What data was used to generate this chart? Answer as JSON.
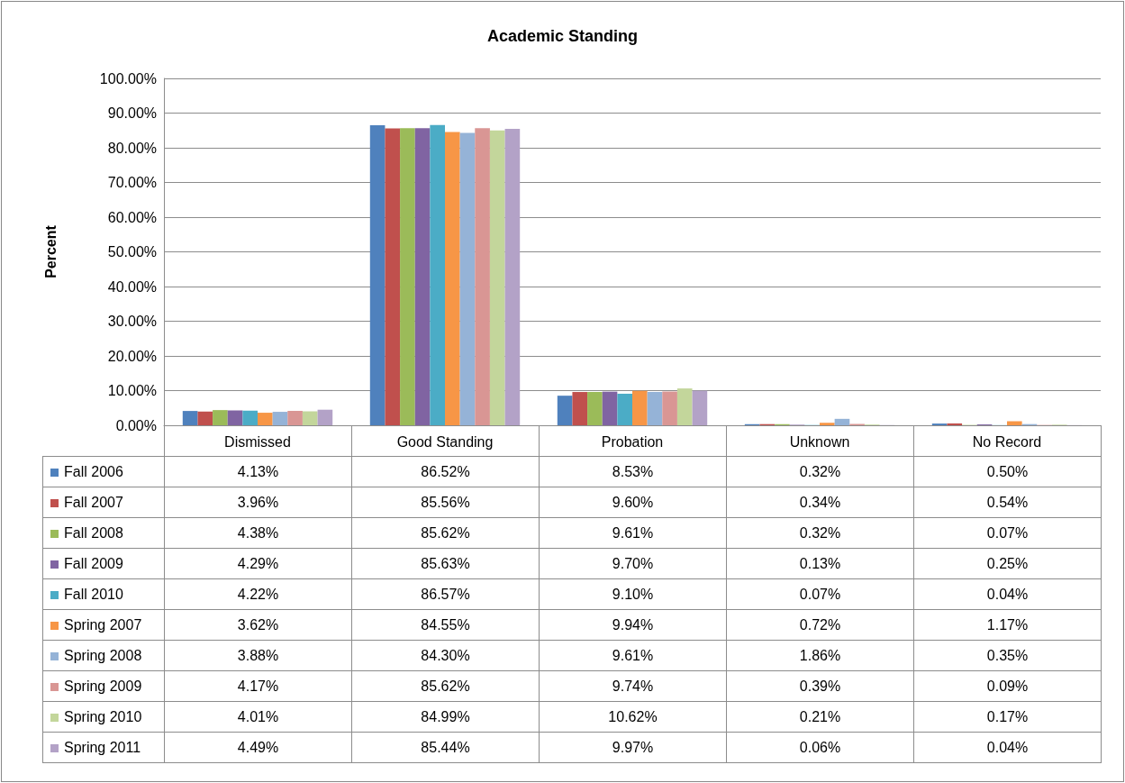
{
  "chart_data": {
    "type": "bar",
    "title": "Academic Standing",
    "ylabel": "Percent",
    "categories": [
      "Dismissed",
      "Good Standing",
      "Probation",
      "Unknown",
      "No Record"
    ],
    "series": [
      {
        "name": "Fall 2006",
        "color": "#4f81bd",
        "values": [
          4.13,
          86.52,
          8.53,
          0.32,
          0.5
        ],
        "value_labels": [
          "4.13%",
          "86.52%",
          "8.53%",
          "0.32%",
          "0.50%"
        ]
      },
      {
        "name": "Fall 2007",
        "color": "#c0504d",
        "values": [
          3.96,
          85.56,
          9.6,
          0.34,
          0.54
        ],
        "value_labels": [
          "3.96%",
          "85.56%",
          "9.60%",
          "0.34%",
          "0.54%"
        ]
      },
      {
        "name": "Fall 2008",
        "color": "#9bbb59",
        "values": [
          4.38,
          85.62,
          9.61,
          0.32,
          0.07
        ],
        "value_labels": [
          "4.38%",
          "85.62%",
          "9.61%",
          "0.32%",
          "0.07%"
        ]
      },
      {
        "name": "Fall 2009",
        "color": "#8064a2",
        "values": [
          4.29,
          85.63,
          9.7,
          0.13,
          0.25
        ],
        "value_labels": [
          "4.29%",
          "85.63%",
          "9.70%",
          "0.13%",
          "0.25%"
        ]
      },
      {
        "name": "Fall 2010",
        "color": "#4bacc6",
        "values": [
          4.22,
          86.57,
          9.1,
          0.07,
          0.04
        ],
        "value_labels": [
          "4.22%",
          "86.57%",
          "9.10%",
          "0.07%",
          "0.04%"
        ]
      },
      {
        "name": "Spring 2007",
        "color": "#f79646",
        "values": [
          3.62,
          84.55,
          9.94,
          0.72,
          1.17
        ],
        "value_labels": [
          "3.62%",
          "84.55%",
          "9.94%",
          "0.72%",
          "1.17%"
        ]
      },
      {
        "name": "Spring 2008",
        "color": "#95b3d7",
        "values": [
          3.88,
          84.3,
          9.61,
          1.86,
          0.35
        ],
        "value_labels": [
          "3.88%",
          "84.30%",
          "9.61%",
          "1.86%",
          "0.35%"
        ]
      },
      {
        "name": "Spring 2009",
        "color": "#d99694",
        "values": [
          4.17,
          85.62,
          9.74,
          0.39,
          0.09
        ],
        "value_labels": [
          "4.17%",
          "85.62%",
          "9.74%",
          "0.39%",
          "0.09%"
        ]
      },
      {
        "name": "Spring 2010",
        "color": "#c3d69b",
        "values": [
          4.01,
          84.99,
          10.62,
          0.21,
          0.17
        ],
        "value_labels": [
          "4.01%",
          "84.99%",
          "10.62%",
          "0.21%",
          "0.17%"
        ]
      },
      {
        "name": "Spring 2011",
        "color": "#b3a2c7",
        "values": [
          4.49,
          85.44,
          9.97,
          0.06,
          0.04
        ],
        "value_labels": [
          "4.49%",
          "85.44%",
          "9.97%",
          "0.06%",
          "0.04%"
        ]
      }
    ],
    "ylim": [
      0,
      100
    ],
    "yticks": [
      {
        "value": 0,
        "label": "0.00%"
      },
      {
        "value": 10,
        "label": "10.00%"
      },
      {
        "value": 20,
        "label": "20.00%"
      },
      {
        "value": 30,
        "label": "30.00%"
      },
      {
        "value": 40,
        "label": "40.00%"
      },
      {
        "value": 50,
        "label": "50.00%"
      },
      {
        "value": 60,
        "label": "60.00%"
      },
      {
        "value": 70,
        "label": "70.00%"
      },
      {
        "value": 80,
        "label": "80.00%"
      },
      {
        "value": 90,
        "label": "90.00%"
      },
      {
        "value": 100,
        "label": "100.00%"
      }
    ],
    "grid": "y",
    "legend": "bottom"
  }
}
